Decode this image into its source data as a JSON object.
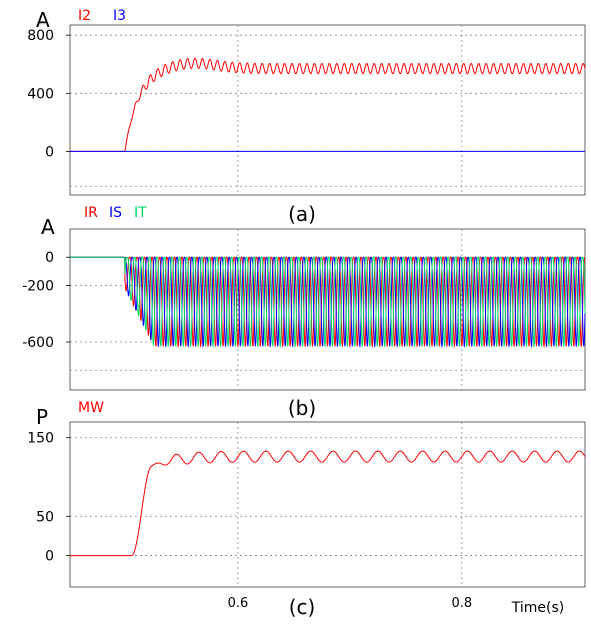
{
  "chart_data": [
    {
      "type": "line",
      "panel_label": "(a)",
      "ylabel": "A",
      "legend_position": "top-left",
      "grid": true,
      "xlim": [
        0.45,
        0.91
      ],
      "ylim": [
        -300,
        870
      ],
      "yticks": [
        800,
        400,
        0
      ],
      "ytick_labels": [
        "800",
        "400",
        "0"
      ],
      "series": [
        {
          "name": "I2",
          "color": "#ff0000",
          "t_start": 0.499,
          "rise_tau": 0.012,
          "steady": 570,
          "overshoot": 40,
          "ripple": 35,
          "ripple_freq": 150
        },
        {
          "name": "I3",
          "color": "#0000ff",
          "constant": 0
        }
      ]
    },
    {
      "type": "line",
      "panel_label": "(b)",
      "ylabel": "A",
      "legend_position": "top-left",
      "grid": true,
      "xlim": [
        0.45,
        0.91
      ],
      "ylim": [
        -940,
        200
      ],
      "yticks": [
        0,
        -200,
        -600
      ],
      "ytick_labels": [
        "0",
        "-200",
        "-600"
      ],
      "series": [
        {
          "name": "IR",
          "color": "#ff0000",
          "t_start": 0.499,
          "min": -630,
          "max": 0,
          "freq": 150,
          "phase_deg": 0
        },
        {
          "name": "IS",
          "color": "#0000ff",
          "t_start": 0.499,
          "min": -630,
          "max": 0,
          "freq": 150,
          "phase_deg": 120
        },
        {
          "name": "IT",
          "color": "#00dd66",
          "t_start": 0.499,
          "min": -630,
          "max": 0,
          "freq": 150,
          "phase_deg": 240
        }
      ]
    },
    {
      "type": "line",
      "panel_label": "(c)",
      "ylabel": "P",
      "legend_position": "top-left",
      "grid": true,
      "xlim": [
        0.45,
        0.91
      ],
      "ylim": [
        -40,
        170
      ],
      "yticks": [
        150,
        50,
        0
      ],
      "ytick_labels": [
        "150",
        "50",
        "0"
      ],
      "xticks": [
        0.6,
        0.8
      ],
      "xtick_labels": [
        "0.6",
        "0.8"
      ],
      "xlabel": "Time(s)",
      "series": [
        {
          "name": "MW",
          "color": "#ff0000",
          "t_start": 0.505,
          "t_rise_end": 0.523,
          "steady": 126,
          "ripple": 7,
          "ripple_freq": 50
        }
      ]
    }
  ]
}
